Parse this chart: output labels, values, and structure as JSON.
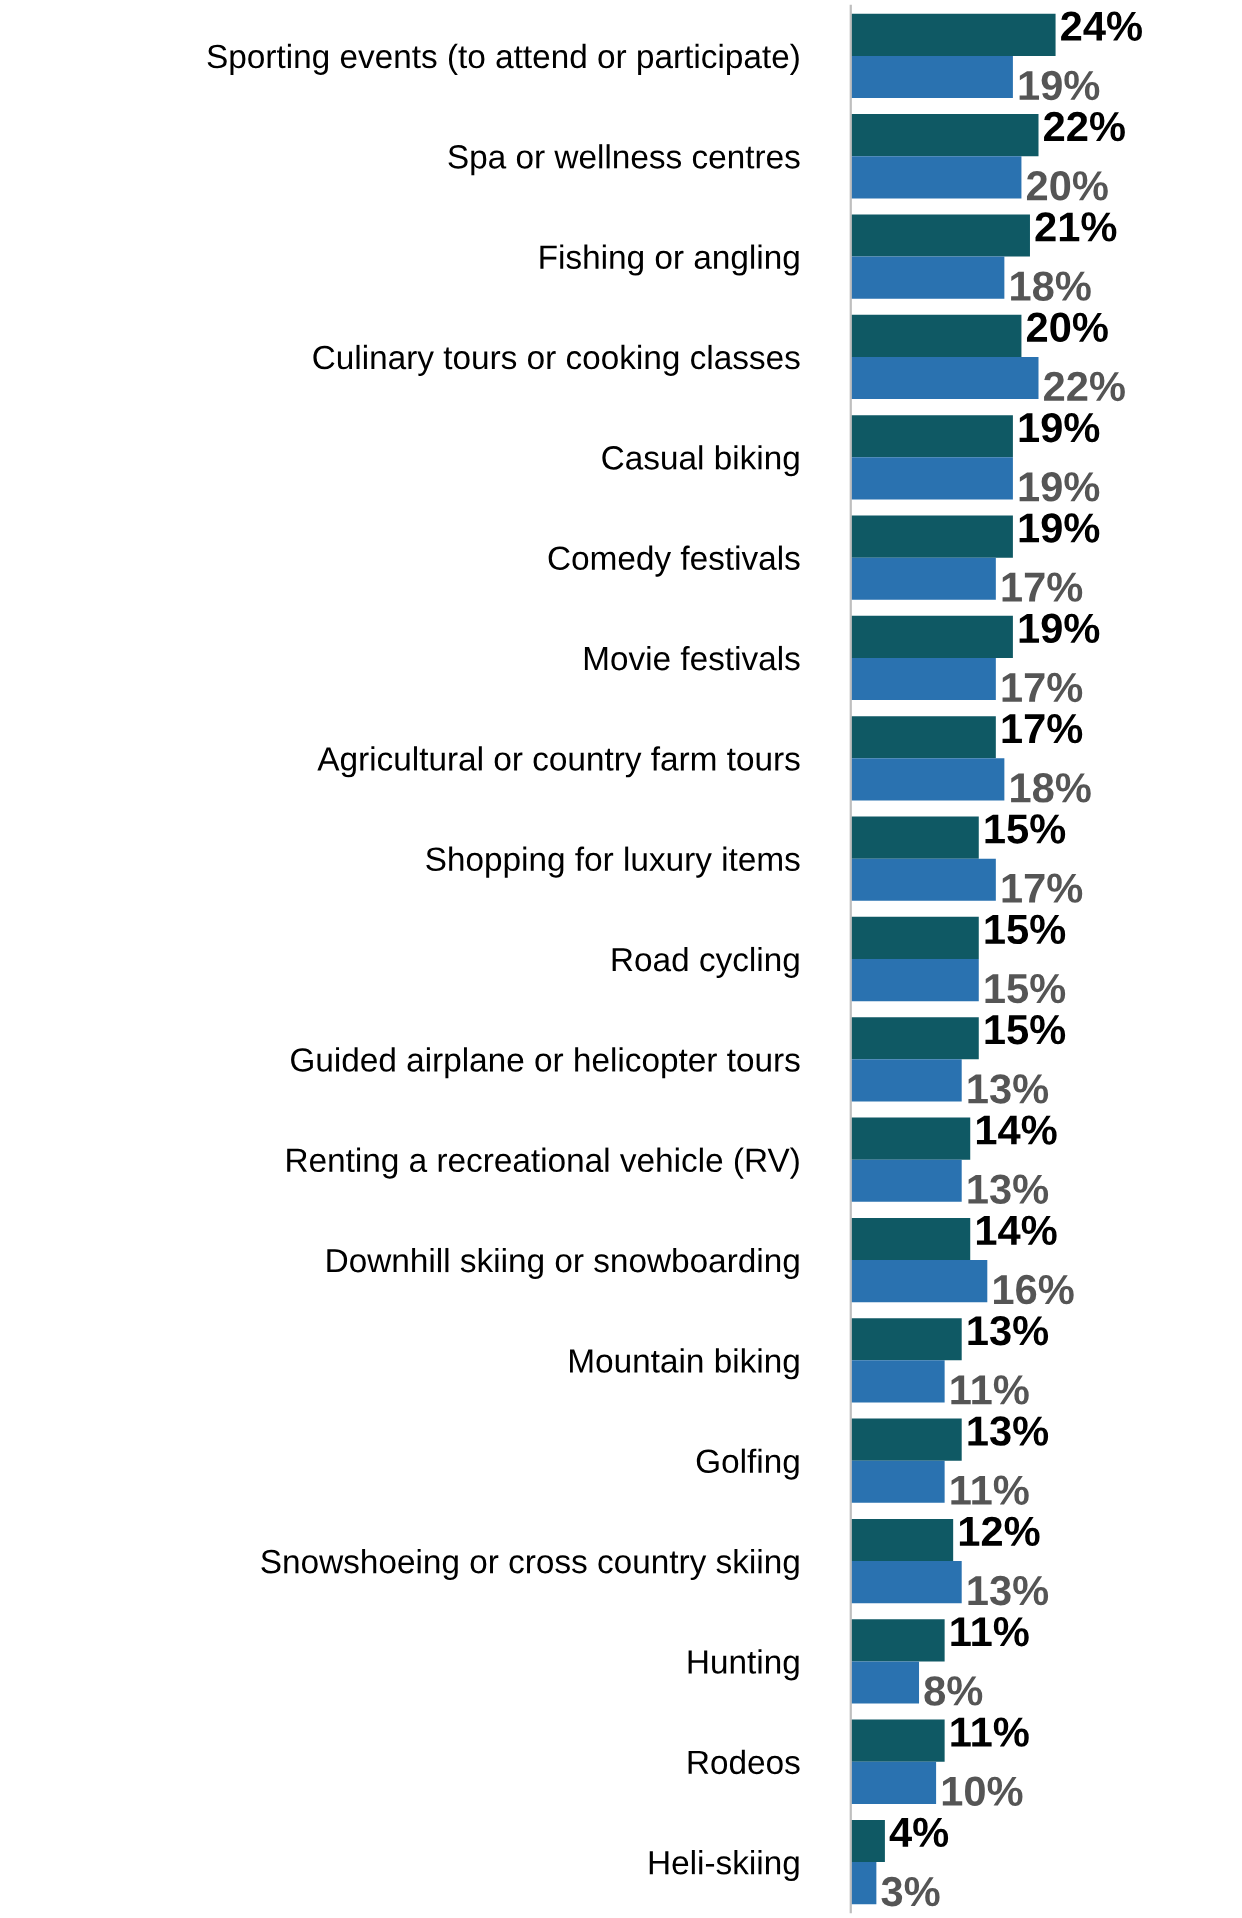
{
  "chart_data": {
    "type": "bar",
    "orientation": "horizontal",
    "categories": [
      "Sporting events (to attend or participate)",
      "Spa or wellness centres",
      "Fishing or angling",
      "Culinary tours or cooking classes",
      "Casual biking",
      "Comedy festivals",
      "Movie festivals",
      "Agricultural or country farm tours",
      "Shopping for luxury items",
      "Road cycling",
      "Guided airplane or helicopter tours",
      "Renting a recreational vehicle (RV)",
      "Downhill skiing or snowboarding",
      "Mountain biking",
      "Golfing",
      "Snowshoeing or cross country skiing",
      "Hunting",
      "Rodeos",
      "Heli-skiing"
    ],
    "series": [
      {
        "color": "#0f5964",
        "values": [
          24,
          22,
          21,
          20,
          19,
          19,
          19,
          17,
          15,
          15,
          15,
          14,
          14,
          13,
          13,
          12,
          11,
          11,
          4
        ],
        "value_labels": [
          "24%",
          "22%",
          "21%",
          "20%",
          "19%",
          "19%",
          "19%",
          "17%",
          "15%",
          "15%",
          "15%",
          "14%",
          "14%",
          "13%",
          "13%",
          "12%",
          "11%",
          "11%",
          "4%"
        ]
      },
      {
        "color": "#2a72b0",
        "values": [
          19,
          20,
          18,
          22,
          19,
          17,
          17,
          18,
          17,
          15,
          13,
          13,
          16,
          11,
          11,
          13,
          8,
          10,
          3
        ],
        "value_labels": [
          "19%",
          "20%",
          "18%",
          "22%",
          "19%",
          "17%",
          "17%",
          "18%",
          "17%",
          "15%",
          "13%",
          "13%",
          "16%",
          "11%",
          "11%",
          "13%",
          "8%",
          "10%",
          "3%"
        ]
      }
    ],
    "grid": false,
    "legend": false
  }
}
